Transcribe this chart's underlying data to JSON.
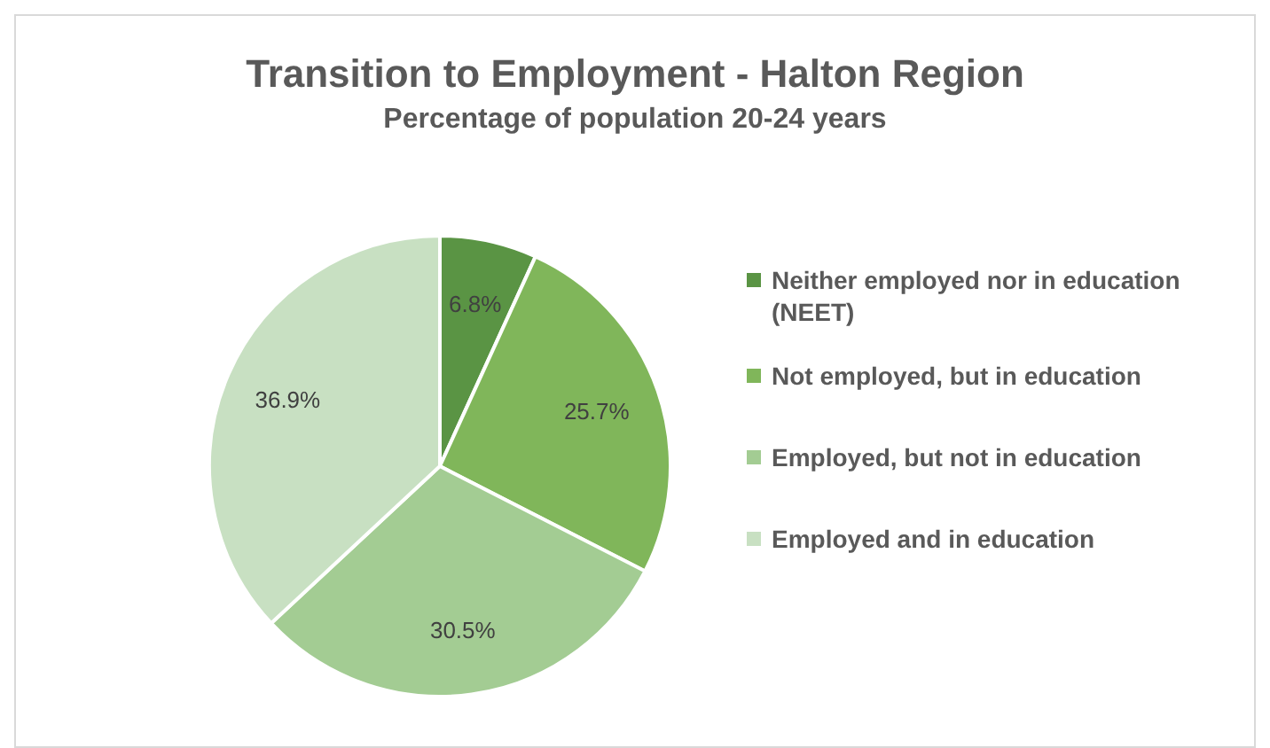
{
  "chart_data": {
    "type": "pie",
    "title": "Transition to Employment - Halton Region",
    "subtitle": "Percentage of population 20-24 years",
    "categories": [
      "Neither employed nor in education (NEET)",
      "Not employed, but in education",
      "Employed, but not in education",
      "Employed and in education"
    ],
    "values": [
      6.8,
      25.7,
      30.5,
      36.9
    ],
    "value_labels": [
      "6.8%",
      "25.7%",
      "30.5%",
      "36.9%"
    ],
    "colors": [
      "#5a9444",
      "#80b65a",
      "#a3cc93",
      "#c8e0c2"
    ],
    "legend": "right"
  }
}
